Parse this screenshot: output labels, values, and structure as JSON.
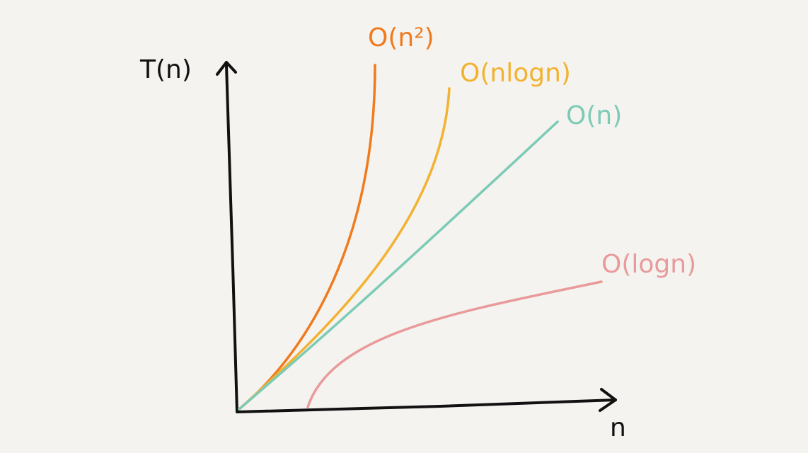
{
  "axes": {
    "y_label": "T(n)",
    "x_label": "n"
  },
  "curves": [
    {
      "label": "O(n²)",
      "color": "#f07a1e"
    },
    {
      "label": "O(nlogn)",
      "color": "#f2b232"
    },
    {
      "label": "O(n)",
      "color": "#7ccbb6"
    },
    {
      "label": "O(logn)",
      "color": "#e99a9a"
    }
  ]
}
